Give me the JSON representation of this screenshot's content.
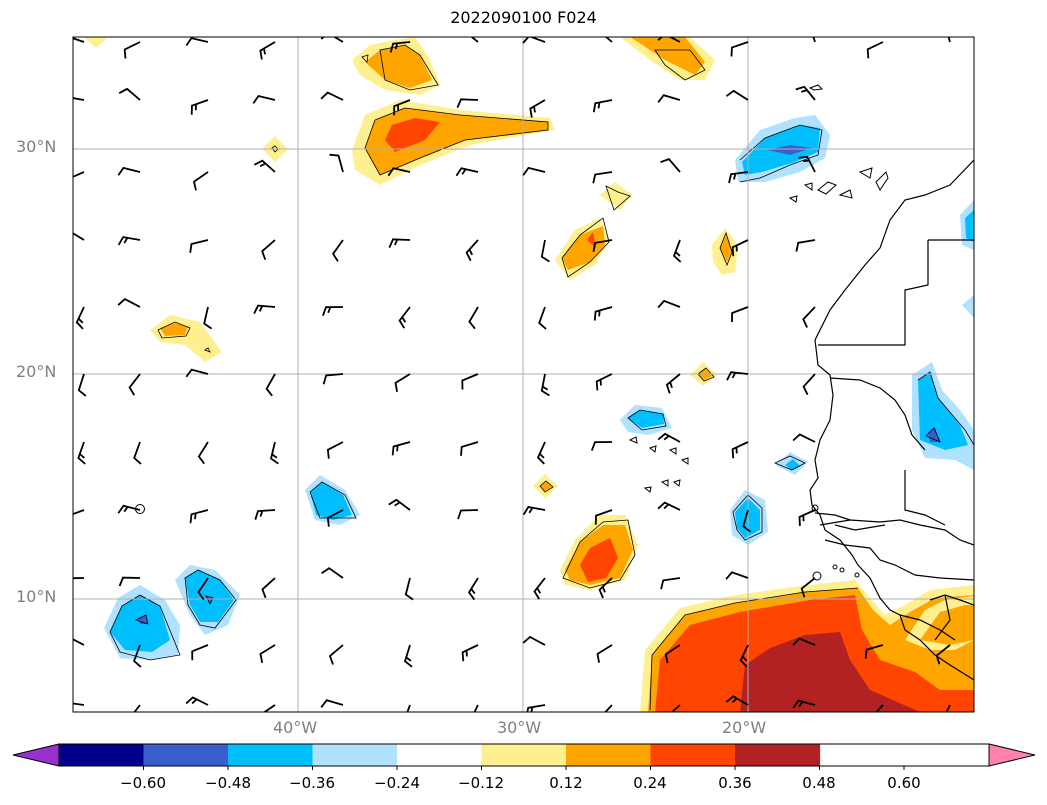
{
  "title": "2022090100 F024",
  "lat_labels": [
    "30°N",
    "20°N",
    "10°N"
  ],
  "lon_labels": [
    "40°W",
    "30°W",
    "20°W"
  ],
  "colorbar": {
    "ticks": [
      "−0.60",
      "−0.48",
      "−0.36",
      "−0.24",
      "−0.12",
      "0.12",
      "0.24",
      "0.36",
      "0.48",
      "0.60"
    ],
    "colors": [
      "#9932cc",
      "#00008b",
      "#3a5fcd",
      "#00bfff",
      "#b0e2ff",
      "#ffffff",
      "#fff08f",
      "#ffa500",
      "#ff4500",
      "#b22222",
      "#ff82ab"
    ]
  }
}
